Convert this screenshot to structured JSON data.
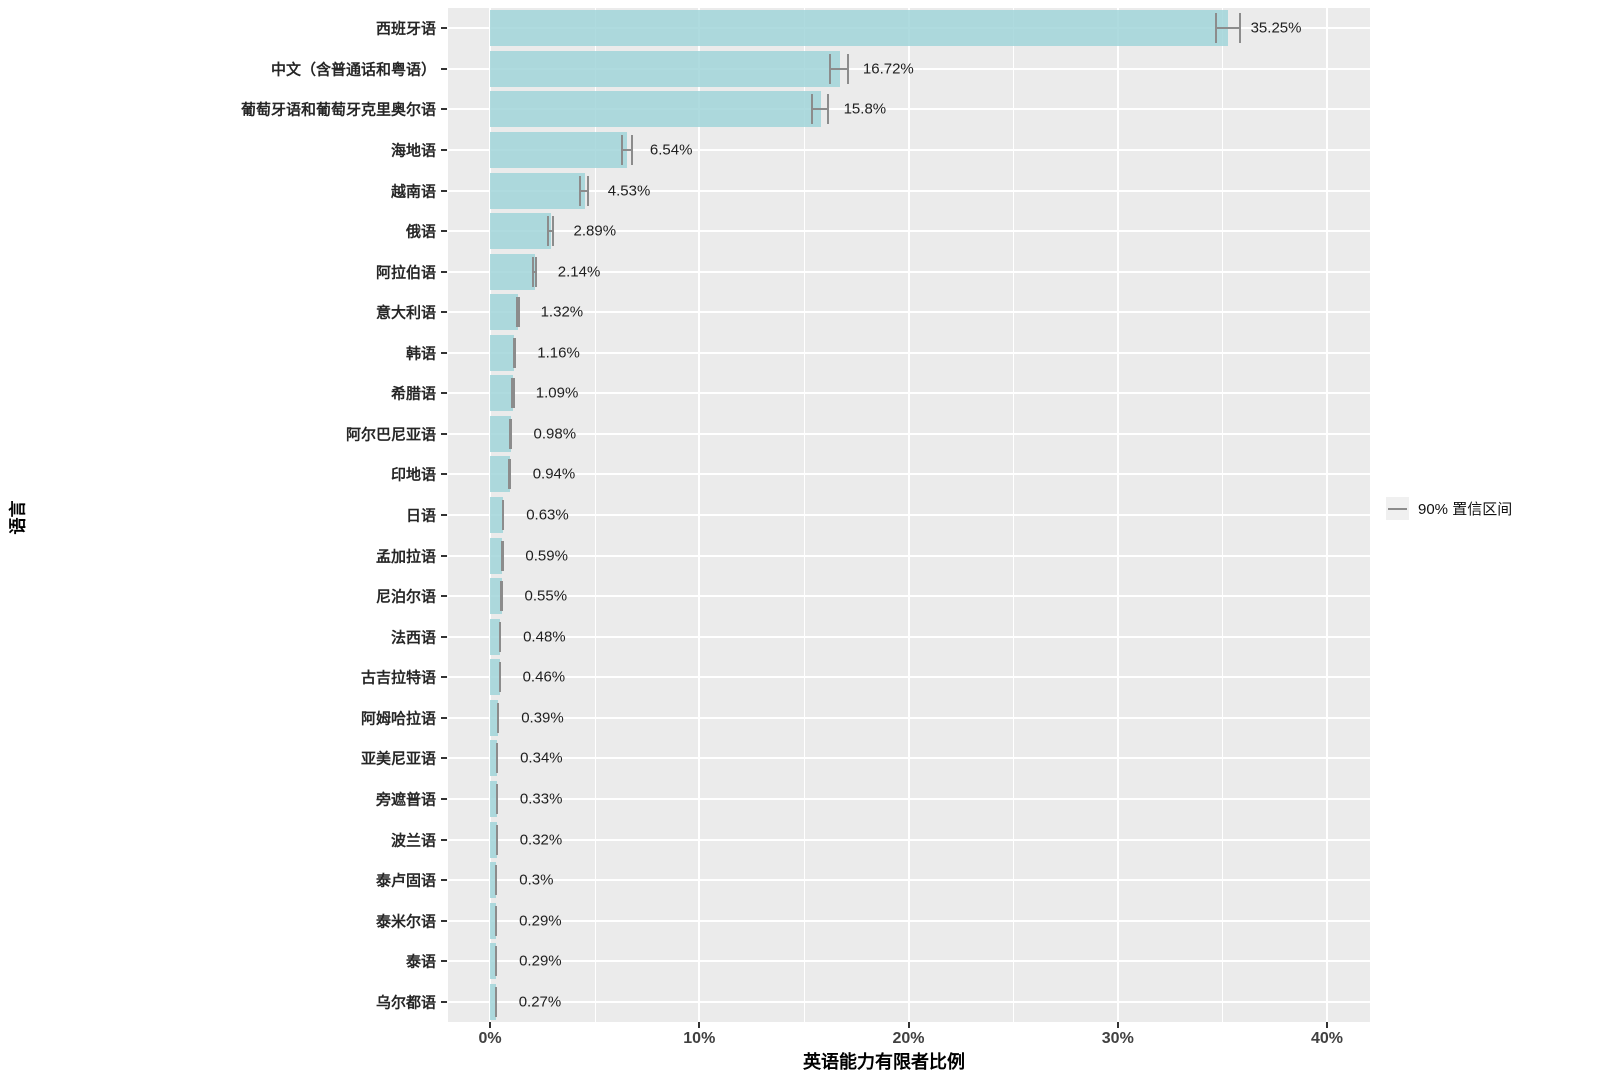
{
  "chart_data": {
    "type": "bar",
    "orientation": "horizontal",
    "title": "",
    "xlabel": "英语能力有限者比例",
    "ylabel": "语言",
    "legend_label": "90% 置信区间",
    "legend_position": "right-middle",
    "grid": true,
    "xlim": [
      -2,
      42
    ],
    "xticks": [
      0,
      10,
      20,
      30,
      40
    ],
    "xtick_labels": [
      "0%",
      "10%",
      "20%",
      "30%",
      "40%"
    ],
    "minor_xticks": [
      5,
      15,
      25,
      35
    ],
    "categories": [
      "西班牙语",
      "中文（含普通话和粤语）",
      "葡萄牙语和葡萄牙克里奥尔语",
      "海地语",
      "越南语",
      "俄语",
      "阿拉伯语",
      "意大利语",
      "韩语",
      "希腊语",
      "阿尔巴尼亚语",
      "印地语",
      "日语",
      "孟加拉语",
      "尼泊尔语",
      "法西语",
      "古吉拉特语",
      "阿姆哈拉语",
      "亚美尼亚语",
      "旁遮普语",
      "波兰语",
      "泰卢固语",
      "泰米尔语",
      "泰语",
      "乌尔都语"
    ],
    "values": [
      35.25,
      16.72,
      15.8,
      6.54,
      4.53,
      2.89,
      2.14,
      1.32,
      1.16,
      1.09,
      0.98,
      0.94,
      0.63,
      0.59,
      0.55,
      0.48,
      0.46,
      0.39,
      0.34,
      0.33,
      0.32,
      0.3,
      0.29,
      0.29,
      0.27
    ],
    "value_labels": [
      "35.25%",
      "16.72%",
      "15.8%",
      "6.54%",
      "4.53%",
      "2.89%",
      "2.14%",
      "1.32%",
      "1.16%",
      "1.09%",
      "0.98%",
      "0.94%",
      "0.63%",
      "0.59%",
      "0.55%",
      "0.48%",
      "0.46%",
      "0.39%",
      "0.34%",
      "0.33%",
      "0.32%",
      "0.3%",
      "0.29%",
      "0.29%",
      "0.27%"
    ],
    "ci_lower": [
      34.65,
      16.22,
      15.35,
      6.25,
      4.25,
      2.74,
      2.02,
      1.23,
      1.08,
      1.01,
      0.9,
      0.87,
      0.57,
      0.53,
      0.49,
      0.43,
      0.41,
      0.34,
      0.3,
      0.29,
      0.28,
      0.26,
      0.25,
      0.25,
      0.23
    ],
    "ci_upper": [
      35.9,
      17.16,
      16.18,
      6.83,
      4.75,
      3.04,
      2.26,
      1.41,
      1.24,
      1.17,
      1.06,
      1.01,
      0.69,
      0.65,
      0.61,
      0.53,
      0.51,
      0.44,
      0.38,
      0.37,
      0.36,
      0.34,
      0.33,
      0.33,
      0.31
    ],
    "colors": {
      "bar_fill": "#ACD7DB",
      "panel_background": "#EBEBEB",
      "gridline": "#FFFFFF",
      "errorbar": "#8C8C8C",
      "axis_text": "#404040",
      "label_text": "#1F1F1F"
    }
  }
}
